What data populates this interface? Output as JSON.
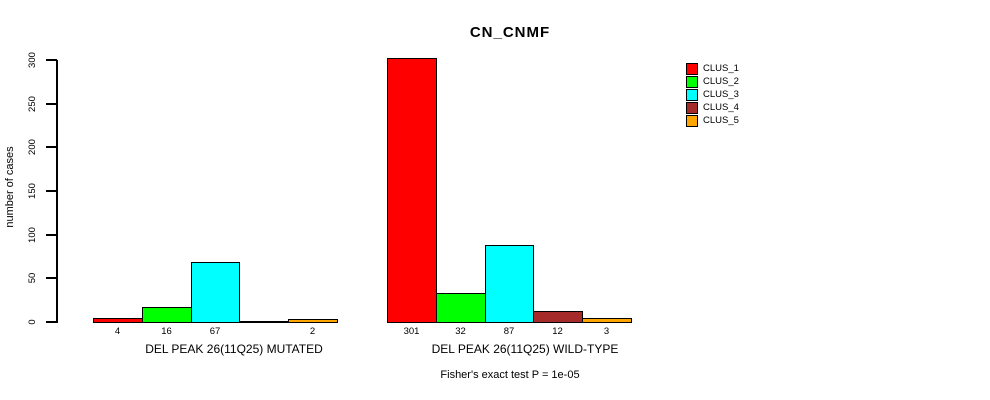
{
  "chart_data": {
    "type": "bar",
    "title": "CN_CNMF",
    "ylabel": "number of cases",
    "xlabel": "",
    "ylim": [
      0,
      300
    ],
    "yticks": [
      0,
      50,
      100,
      150,
      200,
      250,
      300
    ],
    "grid": false,
    "legend_position": "right",
    "series": [
      {
        "name": "CLUS_1",
        "color": "#ff0000"
      },
      {
        "name": "CLUS_2",
        "color": "#00ff00"
      },
      {
        "name": "CLUS_3",
        "color": "#00ffff"
      },
      {
        "name": "CLUS_4",
        "color": "#a52a2a"
      },
      {
        "name": "CLUS_5",
        "color": "#ffa500"
      }
    ],
    "groups": [
      {
        "label": "DEL PEAK 26(11Q25) MUTATED",
        "values": [
          4,
          16,
          67,
          0,
          2
        ],
        "bar_labels": [
          "4",
          "16",
          "67",
          "",
          "2"
        ]
      },
      {
        "label": "DEL PEAK 26(11Q25) WILD-TYPE",
        "values": [
          301,
          32,
          87,
          12,
          3
        ],
        "bar_labels": [
          "301",
          "32",
          "87",
          "12",
          "3"
        ]
      }
    ],
    "caption": "Fisher's exact test P = 1e-05"
  }
}
